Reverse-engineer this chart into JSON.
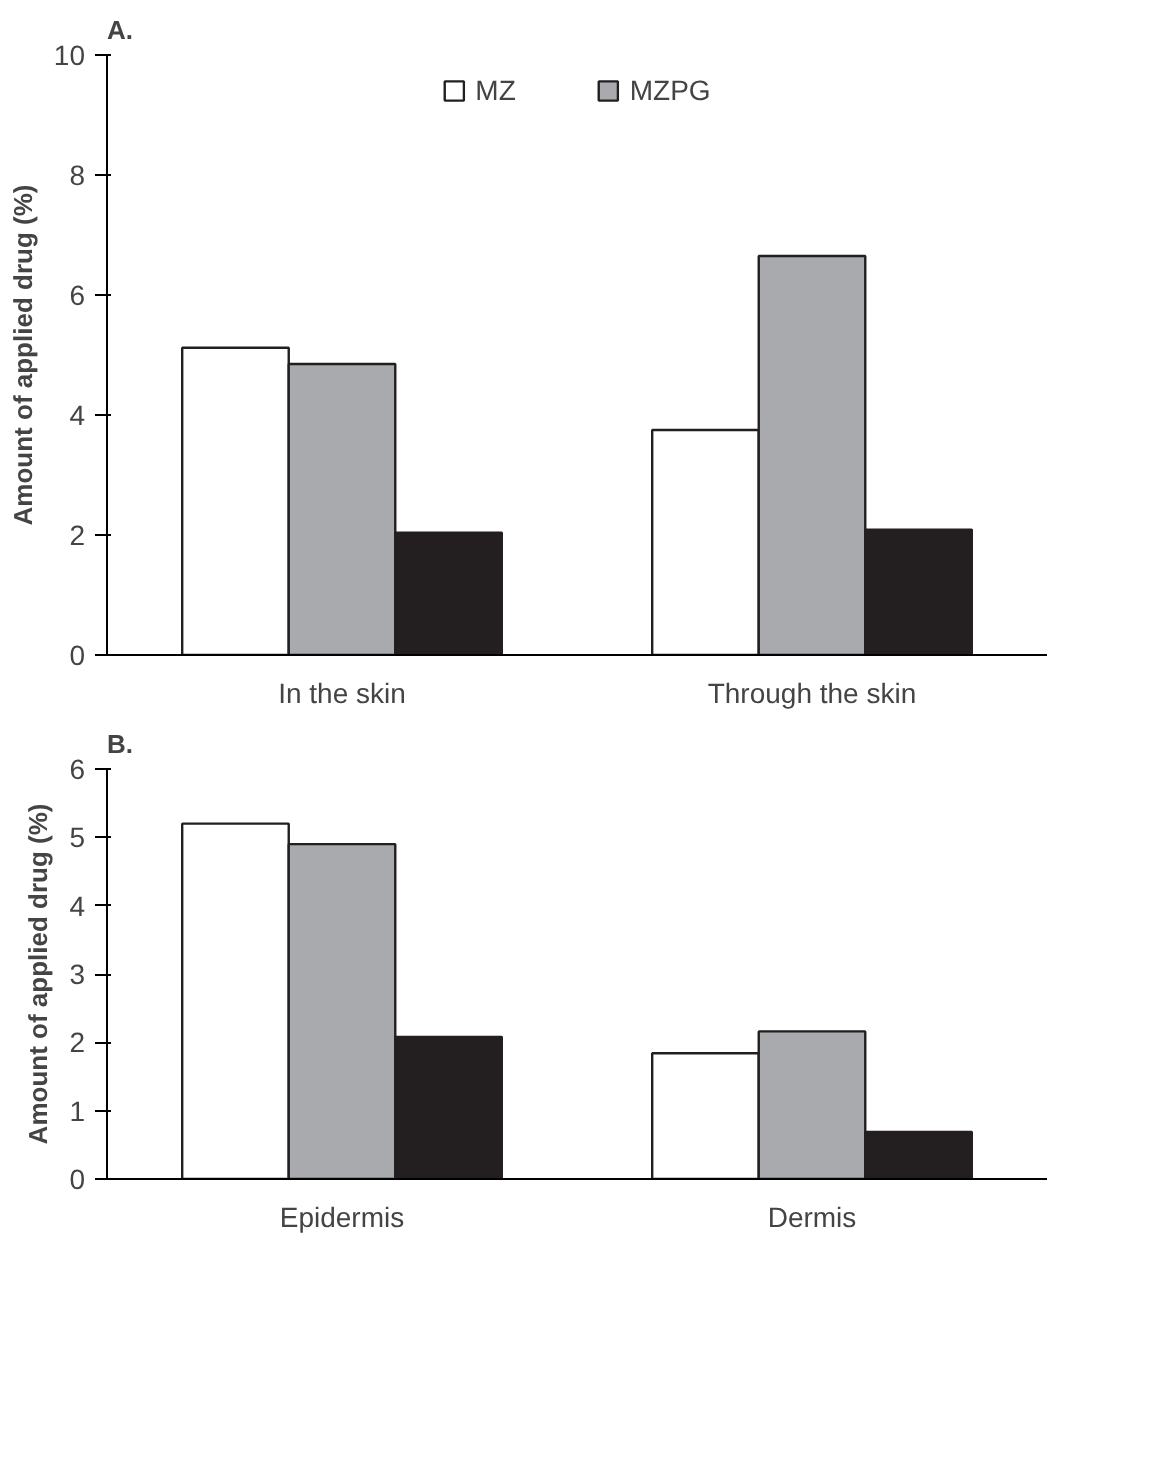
{
  "chart_data": [
    {
      "type": "bar",
      "title": "A.",
      "ylabel": "Amount of applied drug (%)",
      "categories": [
        "In the skin",
        "Through the skin"
      ],
      "ylim": [
        0,
        10
      ],
      "yticks": [
        0,
        2,
        4,
        6,
        8,
        10
      ],
      "grid": false,
      "legend": "top",
      "series": [
        {
          "name": "MZ",
          "color": "#ffffff",
          "values": [
            5.12,
            3.75
          ]
        },
        {
          "name": "MZPG",
          "color": "#a9aaad",
          "values": [
            4.85,
            6.65
          ]
        },
        {
          "color": "#231f20",
          "values": [
            2.04,
            2.09
          ]
        }
      ]
    },
    {
      "type": "bar",
      "title": "B.",
      "ylabel": "Amount of applied drug (%)",
      "categories": [
        "Epidermis",
        "Dermis"
      ],
      "ylim": [
        0,
        6
      ],
      "yticks": [
        0,
        1,
        2,
        3,
        4,
        5,
        6
      ],
      "grid": false,
      "series": [
        {
          "color": "#ffffff",
          "values": [
            5.2,
            1.84
          ]
        },
        {
          "color": "#a9aaad",
          "values": [
            4.9,
            2.16
          ]
        },
        {
          "color": "#231f20",
          "values": [
            2.08,
            0.69
          ]
        }
      ]
    }
  ]
}
